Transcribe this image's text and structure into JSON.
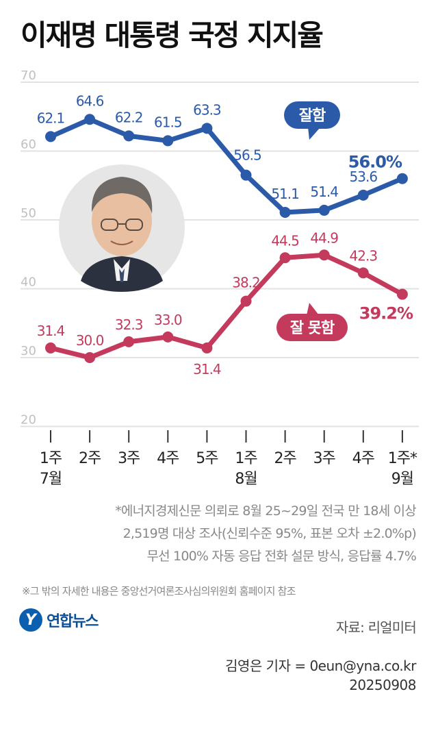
{
  "title": "이재명 대통령 국정 지지율",
  "chart_data": {
    "type": "line",
    "categories": [
      "1주",
      "2주",
      "3주",
      "4주",
      "5주",
      "1주",
      "2주",
      "3주",
      "4주",
      "1주*"
    ],
    "month_labels": [
      {
        "index": 0,
        "label": "7월"
      },
      {
        "index": 5,
        "label": "8월"
      },
      {
        "index": 9,
        "label": "9월"
      }
    ],
    "ylim": [
      20,
      70
    ],
    "yticks": [
      20,
      30,
      40,
      50,
      60,
      70
    ],
    "grid": true,
    "series": [
      {
        "name": "잘함",
        "color": "#2b5aa8",
        "values": [
          62.1,
          64.6,
          62.2,
          61.5,
          63.3,
          56.5,
          51.1,
          51.4,
          53.6,
          56.0
        ],
        "labels": [
          "62.1",
          "64.6",
          "62.2",
          "61.5",
          "63.3",
          "56.5",
          "51.1",
          "51.4",
          "53.6",
          "56.0%"
        ]
      },
      {
        "name": "잘 못함",
        "color": "#c43a5c",
        "values": [
          31.4,
          30.0,
          32.3,
          33.0,
          31.4,
          38.2,
          44.5,
          44.9,
          42.3,
          39.2
        ],
        "labels": [
          "31.4",
          "30.0",
          "32.3",
          "33.0",
          "31.4",
          "38.2",
          "44.5",
          "44.9",
          "42.3",
          "39.2%"
        ]
      }
    ]
  },
  "footnote_lines": [
    "*에너지경제신문 의뢰로 8월 25~29일 전국 만 18세 이상",
    "2,519명 대상 조사(신뢰수준 95%, 표본 오차 ±2.0%p)",
    "무선 100% 자동 응답 전화 설문 방식, 응답률 4.7%"
  ],
  "note": "※그 밖의 자세한 내용은 중앙선거여론조사심의위원회 홈페이지 참조",
  "logo": {
    "mark": "Y",
    "text": "연합뉴스"
  },
  "source": "자료: 리얼미터",
  "credit": "김영은 기자 = 0eun@yna.co.kr",
  "date": "20250908"
}
